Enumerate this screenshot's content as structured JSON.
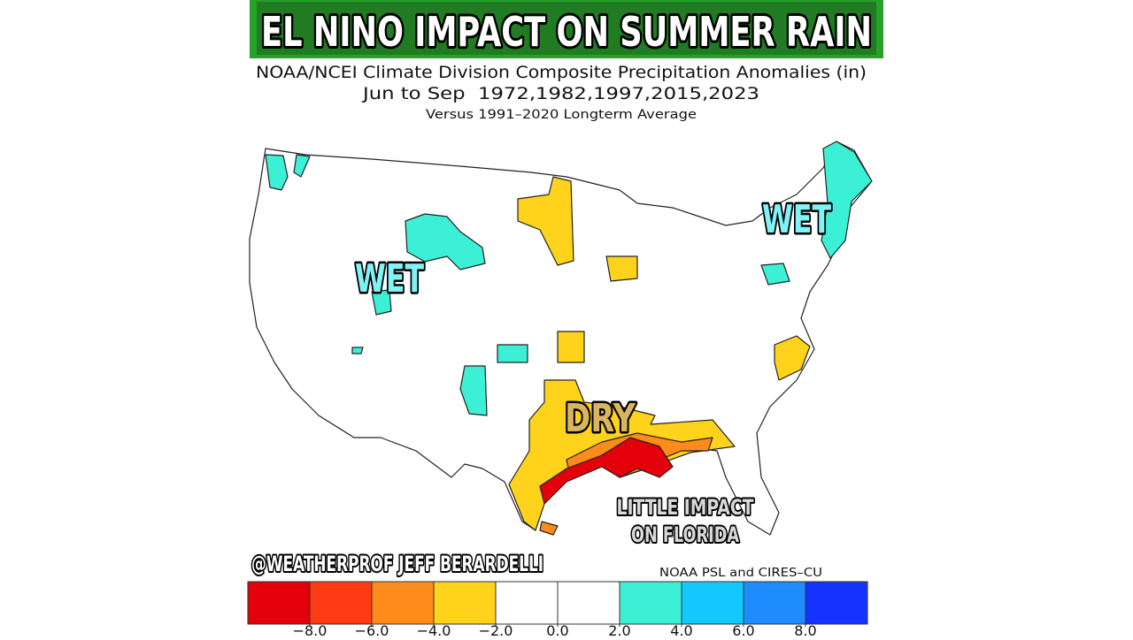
{
  "header": {
    "title": "EL NINO IMPACT ON SUMMER RAIN",
    "subtitle_lines": [
      "NOAA/NCEI Climate Division Composite Precipitation Anomalies (in)",
      "Jun to Sep  1972,1982,1997,2015,2023",
      "Versus 1991–2020 Longterm Average"
    ]
  },
  "annotations": [
    "WET",
    "WET",
    "DRY",
    "LITTLE IMPACT",
    "ON FLORIDA"
  ],
  "credit": "@WEATHERPROF JEFF BERARDELLI",
  "source": "NOAA PSL and CIRES–CU",
  "colorbar": {
    "colors": [
      "#e3000a",
      "#ff3b14",
      "#ff8c1a",
      "#ffd21c",
      "#ffffff",
      "#ffffff",
      "#3cf0d6",
      "#12c8ff",
      "#1e8cff",
      "#1433ff"
    ],
    "ticks": [
      {
        "value": -8,
        "label": "−8.0"
      },
      {
        "value": -6,
        "label": "−6.0"
      },
      {
        "value": -4,
        "label": "−4.0"
      },
      {
        "value": -2,
        "label": "−2.0"
      },
      {
        "value": 0,
        "label": "0.0"
      },
      {
        "value": 2,
        "label": "2.0"
      },
      {
        "value": 4,
        "label": "4.0"
      },
      {
        "value": 6,
        "label": "6.0"
      },
      {
        "value": 8,
        "label": "8.0"
      }
    ]
  }
}
